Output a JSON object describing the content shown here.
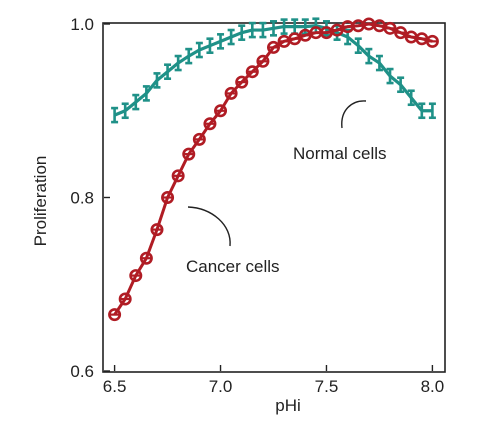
{
  "chart_data": {
    "type": "line",
    "xlabel": "pHi",
    "ylabel": "Proliferation",
    "xlim": [
      6.45,
      8.05
    ],
    "ylim": [
      0.6,
      1.0
    ],
    "x_ticks": [
      "6.5",
      "7.0",
      "7.5",
      "8.0"
    ],
    "y_ticks": [
      "0.6",
      "0.8",
      "1.0"
    ],
    "grid": false,
    "colors": {
      "cancer": "#b01c24",
      "normal": "#1f9188"
    },
    "series": [
      {
        "name": "Cancer cells",
        "marker": "circle",
        "color": "#b01c24",
        "x": [
          6.5,
          6.55,
          6.6,
          6.65,
          6.7,
          6.75,
          6.8,
          6.85,
          6.9,
          6.95,
          7.0,
          7.05,
          7.1,
          7.15,
          7.2,
          7.25,
          7.3,
          7.35,
          7.4,
          7.45,
          7.5,
          7.55,
          7.6,
          7.65,
          7.7,
          7.75,
          7.8,
          7.85,
          7.9,
          7.95,
          8.0
        ],
        "values": [
          0.665,
          0.683,
          0.71,
          0.73,
          0.763,
          0.8,
          0.825,
          0.85,
          0.867,
          0.885,
          0.9,
          0.92,
          0.933,
          0.945,
          0.957,
          0.973,
          0.98,
          0.983,
          0.987,
          0.99,
          0.99,
          0.993,
          0.997,
          0.998,
          1.0,
          0.998,
          0.995,
          0.99,
          0.985,
          0.983,
          0.98
        ]
      },
      {
        "name": "Normal cells",
        "marker": "error-bar",
        "color": "#1f9188",
        "x": [
          6.5,
          6.55,
          6.6,
          6.65,
          6.7,
          6.75,
          6.8,
          6.85,
          6.9,
          6.95,
          7.0,
          7.05,
          7.1,
          7.15,
          7.2,
          7.25,
          7.3,
          7.35,
          7.4,
          7.45,
          7.5,
          7.55,
          7.6,
          7.65,
          7.7,
          7.75,
          7.8,
          7.85,
          7.9,
          7.95,
          8.0
        ],
        "values": [
          0.895,
          0.9,
          0.91,
          0.92,
          0.935,
          0.945,
          0.955,
          0.963,
          0.97,
          0.975,
          0.98,
          0.985,
          0.99,
          0.993,
          0.993,
          0.995,
          0.997,
          0.997,
          0.997,
          0.998,
          0.995,
          0.99,
          0.985,
          0.975,
          0.963,
          0.955,
          0.94,
          0.93,
          0.915,
          0.9,
          0.9
        ]
      }
    ],
    "annotations": [
      {
        "text": "Normal cells",
        "series": "Normal cells"
      },
      {
        "text": "Cancer cells",
        "series": "Cancer cells"
      }
    ]
  }
}
